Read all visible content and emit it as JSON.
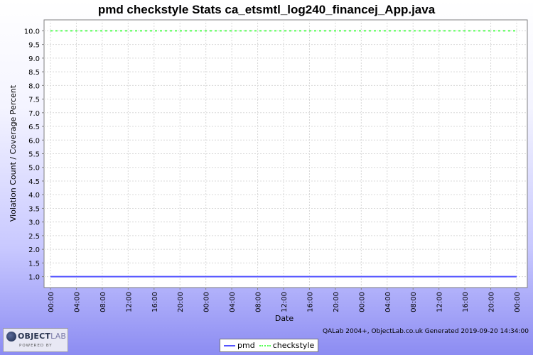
{
  "chart_data": {
    "type": "line",
    "title": "pmd checkstyle  Stats ca_etsmtl_log240_financej_App.java",
    "xlabel": "Date",
    "ylabel": "Violation Count / Coverage Percent",
    "ylim": [
      0.6,
      10.4
    ],
    "yticks": [
      "1.0",
      "1.5",
      "2.0",
      "2.5",
      "3.0",
      "3.5",
      "4.0",
      "4.5",
      "5.0",
      "5.5",
      "6.0",
      "6.5",
      "7.0",
      "7.5",
      "8.0",
      "8.5",
      "9.0",
      "9.5",
      "10.0"
    ],
    "xticks": [
      "00:00",
      "04:00",
      "08:00",
      "12:00",
      "16:00",
      "20:00",
      "00:00",
      "04:00",
      "08:00",
      "12:00",
      "16:00",
      "20:00",
      "00:00",
      "04:00",
      "08:00",
      "12:00",
      "16:00",
      "20:00",
      "00:00"
    ],
    "grid": true,
    "legend_position": "bottom",
    "series": [
      {
        "name": "pmd",
        "color": "#5555ff",
        "style": "solid",
        "x": [
          "00:00",
          "00:00"
        ],
        "values": [
          1.0,
          1.0
        ]
      },
      {
        "name": "checkstyle",
        "color": "#55ff55",
        "style": "dashed",
        "x": [
          "00:00",
          "00:00"
        ],
        "values": [
          10.0,
          10.0
        ]
      }
    ]
  },
  "footer": {
    "credit": "QALab 2004+, ObjectLab.co.uk  Generated 2019-09-20 14:34:00",
    "logo_text": "OBJECT",
    "logo_text_2": "LAB",
    "logo_sub": "POWERED BY"
  }
}
